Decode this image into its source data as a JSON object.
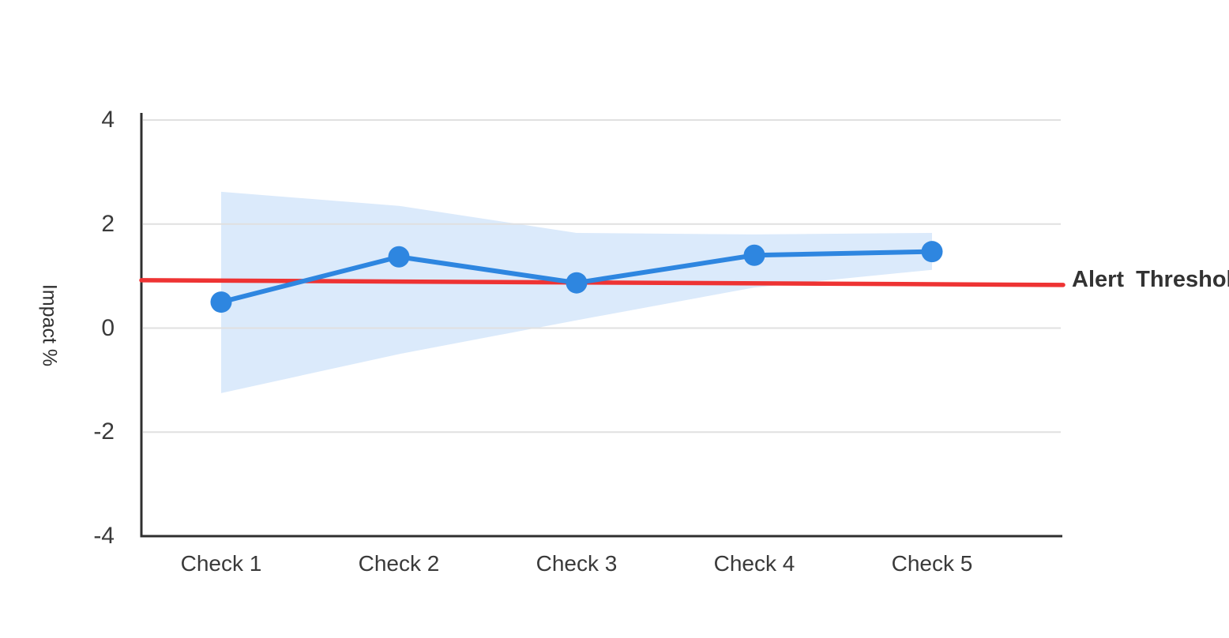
{
  "chart_data": {
    "type": "line",
    "title": "",
    "xlabel": "",
    "ylabel": "Impact %",
    "categories": [
      "Check 1",
      "Check 2",
      "Check 3",
      "Check 4",
      "Check 5"
    ],
    "series": [
      {
        "name": "Impact",
        "values": [
          0.5,
          1.37,
          0.87,
          1.4,
          1.47
        ]
      }
    ],
    "confidence_band": {
      "upper": [
        2.62,
        2.35,
        1.83,
        1.8,
        1.83
      ],
      "lower": [
        -1.25,
        -0.5,
        0.15,
        0.78,
        1.12
      ]
    },
    "threshold": {
      "label": "Alert Threshold",
      "start_value": 0.92,
      "end_value": 0.83
    },
    "yticks": [
      4,
      2,
      0,
      -2,
      -4
    ],
    "ylim": [
      -4,
      4
    ],
    "grid": true,
    "colors": {
      "line": "#2e86e0",
      "marker": "#2e86e0",
      "band": "#dbeafb",
      "threshold": "#ee3333",
      "axis": "#2f2f2f",
      "gridline": "#e0e0e0",
      "text": "#3a3a3a"
    }
  }
}
